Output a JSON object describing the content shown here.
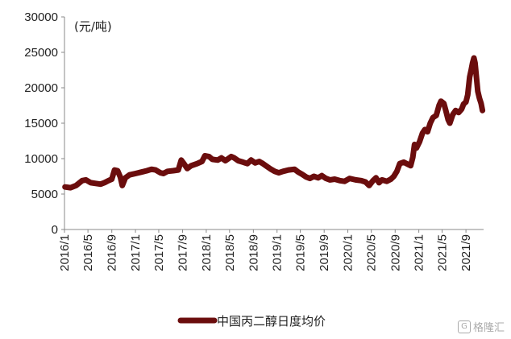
{
  "chart_data": {
    "type": "line",
    "unit_label": "(元/吨)",
    "ylim": [
      0,
      30000
    ],
    "y_ticks": [
      0,
      5000,
      10000,
      15000,
      20000,
      25000,
      30000
    ],
    "x_tick_labels": [
      "2016/1",
      "2016/5",
      "2016/9",
      "2017/1",
      "2017/5",
      "2017/9",
      "2018/1",
      "2018/5",
      "2018/9",
      "2019/1",
      "2019/5",
      "2019/9",
      "2020/1",
      "2020/5",
      "2020/9",
      "2021/1",
      "2021/5",
      "2021/9"
    ],
    "grid": false,
    "legend_position": "bottom",
    "color": "#6b0d0d",
    "series": [
      {
        "name": "中国丙二醇日度均价",
        "points": [
          [
            "2016/1/4",
            6000
          ],
          [
            "2016/2/1",
            5900
          ],
          [
            "2016/3/1",
            6200
          ],
          [
            "2016/4/1",
            6900
          ],
          [
            "2016/4/20",
            7000
          ],
          [
            "2016/5/15",
            6600
          ],
          [
            "2016/6/10",
            6500
          ],
          [
            "2016/7/5",
            6400
          ],
          [
            "2016/7/25",
            6600
          ],
          [
            "2016/8/15",
            6900
          ],
          [
            "2016/9/1",
            7100
          ],
          [
            "2016/9/15",
            8400
          ],
          [
            "2016/10/1",
            8300
          ],
          [
            "2016/10/15",
            7400
          ],
          [
            "2016/10/25",
            6200
          ],
          [
            "2016/11/10",
            7300
          ],
          [
            "2016/12/1",
            7700
          ],
          [
            "2017/1/1",
            7900
          ],
          [
            "2017/2/1",
            8100
          ],
          [
            "2017/3/1",
            8300
          ],
          [
            "2017/3/25",
            8500
          ],
          [
            "2017/4/15",
            8400
          ],
          [
            "2017/5/10",
            8000
          ],
          [
            "2017/5/25",
            7900
          ],
          [
            "2017/6/15",
            8200
          ],
          [
            "2017/7/15",
            8300
          ],
          [
            "2017/8/10",
            8400
          ],
          [
            "2017/8/25",
            9800
          ],
          [
            "2017/9/10",
            9200
          ],
          [
            "2017/9/25",
            8600
          ],
          [
            "2017/10/15",
            9000
          ],
          [
            "2017/11/15",
            9300
          ],
          [
            "2017/12/10",
            9600
          ],
          [
            "2017/12/25",
            10400
          ],
          [
            "2018/1/15",
            10300
          ],
          [
            "2018/2/1",
            9900
          ],
          [
            "2018/3/1",
            9800
          ],
          [
            "2018/3/20",
            10100
          ],
          [
            "2018/4/10",
            9700
          ],
          [
            "2018/4/25",
            10000
          ],
          [
            "2018/5/10",
            10300
          ],
          [
            "2018/5/25",
            10100
          ],
          [
            "2018/6/15",
            9700
          ],
          [
            "2018/7/10",
            9500
          ],
          [
            "2018/8/1",
            9300
          ],
          [
            "2018/8/20",
            9800
          ],
          [
            "2018/9/10",
            9400
          ],
          [
            "2018/10/1",
            9600
          ],
          [
            "2018/10/20",
            9300
          ],
          [
            "2018/11/10",
            8900
          ],
          [
            "2018/12/1",
            8500
          ],
          [
            "2018/12/20",
            8200
          ],
          [
            "2019/1/10",
            8000
          ],
          [
            "2019/2/1",
            8200
          ],
          [
            "2019/3/1",
            8400
          ],
          [
            "2019/4/1",
            8500
          ],
          [
            "2019/4/20",
            8100
          ],
          [
            "2019/5/10",
            7800
          ],
          [
            "2019/6/1",
            7400
          ],
          [
            "2019/6/20",
            7200
          ],
          [
            "2019/7/10",
            7500
          ],
          [
            "2019/8/1",
            7300
          ],
          [
            "2019/8/20",
            7600
          ],
          [
            "2019/9/10",
            7200
          ],
          [
            "2019/10/1",
            7000
          ],
          [
            "2019/10/25",
            7100
          ],
          [
            "2019/11/20",
            6900
          ],
          [
            "2019/12/15",
            6800
          ],
          [
            "2020/1/10",
            7200
          ],
          [
            "2020/2/10",
            7000
          ],
          [
            "2020/3/10",
            6900
          ],
          [
            "2020/4/1",
            6700
          ],
          [
            "2020/4/20",
            6200
          ],
          [
            "2020/5/10",
            6900
          ],
          [
            "2020/5/25",
            7300
          ],
          [
            "2020/6/10",
            6600
          ],
          [
            "2020/6/25",
            7000
          ],
          [
            "2020/7/20",
            6800
          ],
          [
            "2020/8/10",
            7100
          ],
          [
            "2020/8/25",
            7500
          ],
          [
            "2020/9/10",
            8200
          ],
          [
            "2020/9/25",
            9300
          ],
          [
            "2020/10/15",
            9500
          ],
          [
            "2020/11/5",
            9200
          ],
          [
            "2020/11/20",
            9000
          ],
          [
            "2020/12/1",
            10200
          ],
          [
            "2020/12/10",
            12000
          ],
          [
            "2020/12/20",
            11500
          ],
          [
            "2021/1/5",
            12400
          ],
          [
            "2021/1/20",
            13600
          ],
          [
            "2021/2/1",
            14100
          ],
          [
            "2021/2/15",
            13800
          ],
          [
            "2021/3/1",
            15000
          ],
          [
            "2021/3/15",
            15800
          ],
          [
            "2021/4/1",
            16100
          ],
          [
            "2021/4/15",
            17500
          ],
          [
            "2021/4/25",
            18100
          ],
          [
            "2021/5/10",
            17800
          ],
          [
            "2021/5/20",
            16800
          ],
          [
            "2021/6/1",
            15500
          ],
          [
            "2021/6/10",
            15000
          ],
          [
            "2021/6/25",
            16200
          ],
          [
            "2021/7/10",
            16800
          ],
          [
            "2021/7/25",
            16500
          ],
          [
            "2021/8/10",
            17000
          ],
          [
            "2021/8/20",
            17700
          ],
          [
            "2021/9/1",
            18000
          ],
          [
            "2021/9/10",
            19000
          ],
          [
            "2021/9/20",
            21500
          ],
          [
            "2021/9/28",
            22500
          ],
          [
            "2021/10/5",
            23500
          ],
          [
            "2021/10/12",
            24200
          ],
          [
            "2021/10/18",
            23500
          ],
          [
            "2021/10/25",
            21500
          ],
          [
            "2021/11/1",
            19500
          ],
          [
            "2021/11/10",
            18500
          ],
          [
            "2021/11/18",
            17800
          ],
          [
            "2021/11/25",
            16800
          ]
        ]
      }
    ]
  },
  "watermark": {
    "logo": "G",
    "text": "格隆汇"
  }
}
